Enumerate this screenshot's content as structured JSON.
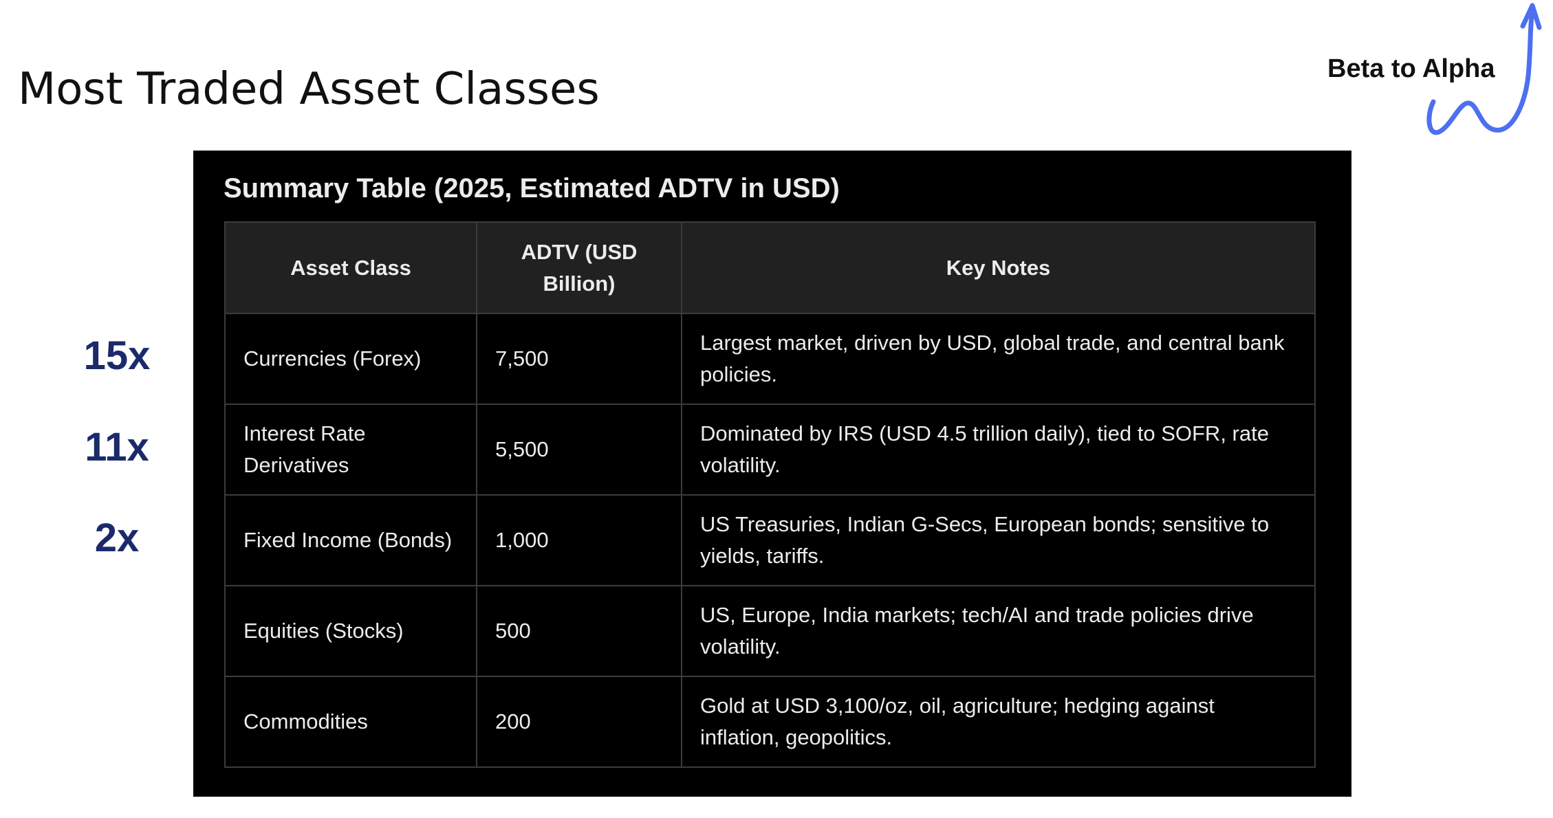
{
  "slide": {
    "title": "Most Traded Asset Classes",
    "brand": "Beta to Alpha",
    "brand_arrow_color": "#4d6ff0",
    "multipliers": [
      "15x",
      "11x",
      "2x"
    ],
    "multiplier_color": "#1b2a6b"
  },
  "summary": {
    "title": "Summary Table (2025, Estimated ADTV in USD)",
    "columns": [
      "Asset Class",
      "ADTV (USD Billion)",
      "Key Notes"
    ],
    "rows": [
      {
        "asset_class": "Currencies (Forex)",
        "adtv": "7,500",
        "notes": "Largest market, driven by USD, global trade, and central bank policies."
      },
      {
        "asset_class": "Interest Rate Derivatives",
        "adtv": "5,500",
        "notes": "Dominated by IRS (USD 4.5 trillion daily), tied to SOFR, rate volatility."
      },
      {
        "asset_class": "Fixed Income (Bonds)",
        "adtv": "1,000",
        "notes": "US Treasuries, Indian G-Secs, European bonds; sensitive to yields, tariffs."
      },
      {
        "asset_class": "Equities (Stocks)",
        "adtv": "500",
        "notes": "US, Europe, India markets; tech/AI and trade policies drive volatility."
      },
      {
        "asset_class": "Commodities",
        "adtv": "200",
        "notes": "Gold at USD 3,100/oz, oil, agriculture; hedging against inflation, geopolitics."
      }
    ],
    "colors": {
      "panel_background": "#000000",
      "header_background": "#212121",
      "text": "#ececec",
      "grid": "#3c3c3c"
    }
  }
}
